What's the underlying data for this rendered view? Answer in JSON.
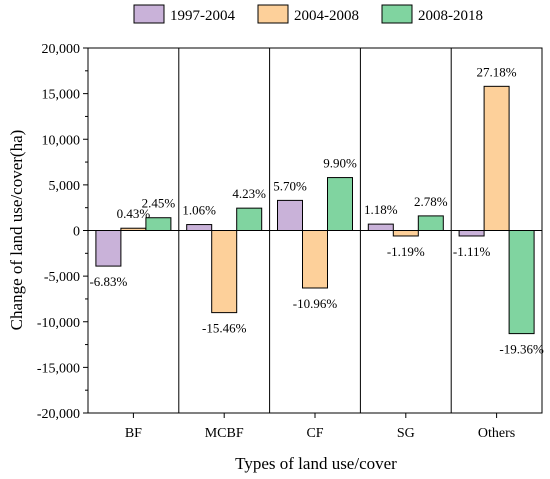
{
  "chart_data": {
    "type": "bar",
    "title": "",
    "xlabel": "Types of land use/cover",
    "ylabel": "Change of land use/cover(ha)",
    "categories": [
      "BF",
      "MCBF",
      "CF",
      "SG",
      "Others"
    ],
    "ylim": [
      -20000,
      20000
    ],
    "yticks": [
      -20000,
      -15000,
      -10000,
      -5000,
      0,
      5000,
      10000,
      15000,
      20000
    ],
    "ytick_labels": [
      "-20,000",
      "-15,000",
      "-10,000",
      "-5,000",
      "0",
      "5,000",
      "10,000",
      "15,000",
      "20,000"
    ],
    "grid": false,
    "legend_position": "top",
    "series": [
      {
        "name": "1997-2004",
        "color": "#c9b2d9",
        "values": [
          -3900,
          650,
          3300,
          700,
          -600
        ],
        "labels": [
          "-6.83%",
          "1.06%",
          "5.70%",
          "1.18%",
          "-1.11%"
        ]
      },
      {
        "name": "2004-2008",
        "color": "#fdd09a",
        "values": [
          250,
          -9000,
          -6300,
          -600,
          15800
        ],
        "labels": [
          "0.43%",
          "-15.46%",
          "-10.96%",
          "-1.19%",
          "27.18%"
        ]
      },
      {
        "name": "2008-2018",
        "color": "#80d4a0",
        "values": [
          1400,
          2450,
          5800,
          1600,
          -11300
        ],
        "labels": [
          "2.45%",
          "4.23%",
          "9.90%",
          "2.78%",
          "-19.36%"
        ]
      }
    ]
  }
}
